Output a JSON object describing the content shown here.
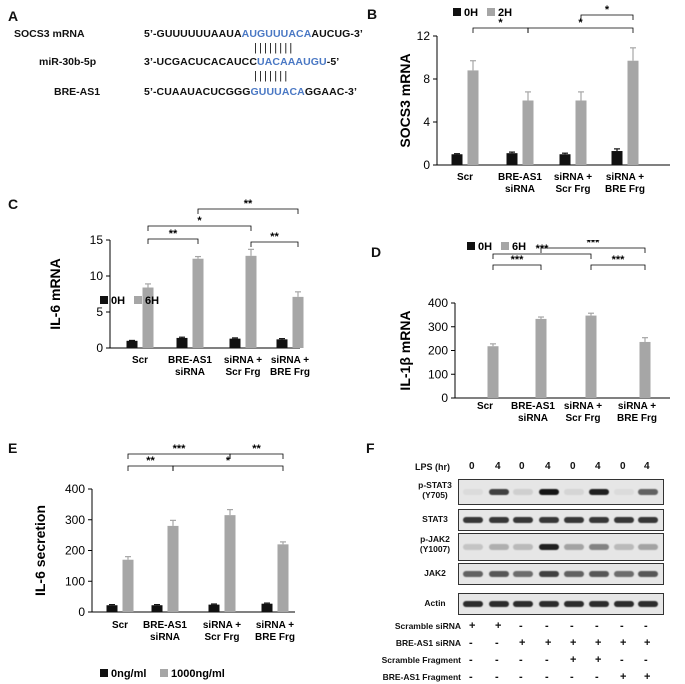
{
  "panels": {
    "A": {
      "label": "A",
      "rows": [
        {
          "name": "SOCS3 mRNA",
          "pre": "5’-GUUUUUUAAUA",
          "site": "AUGUUUACA",
          "post": "AUCUG-3’"
        },
        {
          "name": "miR-30b-5p",
          "pre": "3’-UCGACUCACAUCC",
          "site": "UACAAAUGU",
          "post": "-5’"
        },
        {
          "name": "BRE-AS1",
          "pre": "5’-CUAAUACUCGGG",
          "site": "GUUUACA",
          "post": "GGAAC-3’"
        }
      ],
      "pairing_bars": "||||||||"
    },
    "B": {
      "label": "B"
    },
    "C": {
      "label": "C"
    },
    "D": {
      "label": "D"
    },
    "E": {
      "label": "E"
    },
    "F": {
      "label": "F",
      "lps_label": "LPS (hr)",
      "lps_values": [
        "0",
        "4",
        "0",
        "4",
        "0",
        "4",
        "0",
        "4"
      ],
      "rows": [
        {
          "label": "p-STAT3\n(Y705)"
        },
        {
          "label": "STAT3"
        },
        {
          "label": "p-JAK2\n(Y1007)"
        },
        {
          "label": "JAK2"
        },
        {
          "label": "Actin"
        }
      ],
      "conditions": [
        {
          "name": "Scramble siRNA",
          "signs": [
            "+",
            "+",
            "-",
            "-",
            "-",
            "-",
            "-",
            "-"
          ]
        },
        {
          "name": "BRE-AS1 siRNA",
          "signs": [
            "-",
            "-",
            "+",
            "+",
            "+",
            "+",
            "+",
            "+"
          ]
        },
        {
          "name": "Scramble Fragment",
          "signs": [
            "-",
            "-",
            "-",
            "-",
            "+",
            "+",
            "-",
            "-"
          ]
        },
        {
          "name": "BRE-AS1 Fragment",
          "signs": [
            "-",
            "-",
            "-",
            "-",
            "-",
            "-",
            "+",
            "+"
          ]
        }
      ],
      "band_intensity": [
        [
          0.05,
          0.75,
          0.1,
          0.95,
          0.08,
          0.9,
          0.05,
          0.6
        ],
        [
          0.8,
          0.8,
          0.8,
          0.8,
          0.8,
          0.8,
          0.8,
          0.8
        ],
        [
          0.15,
          0.25,
          0.2,
          0.9,
          0.3,
          0.45,
          0.2,
          0.3
        ],
        [
          0.6,
          0.65,
          0.55,
          0.75,
          0.6,
          0.65,
          0.55,
          0.65
        ],
        [
          0.85,
          0.85,
          0.85,
          0.85,
          0.85,
          0.85,
          0.85,
          0.85
        ]
      ]
    }
  },
  "colors": {
    "dark": "#111111",
    "gray": "#a6a6a6",
    "seq_blue": "#4a78c4"
  },
  "chart_data": [
    {
      "id": "B",
      "type": "bar",
      "ylabel": "SOCS3 mRNA",
      "ylim": [
        0,
        12
      ],
      "yticks": [
        0,
        4,
        8,
        12
      ],
      "categories": [
        "Scr",
        "BRE-AS1\nsiRNA",
        "siRNA +\nScr Frg",
        "siRNA +\nBRE Frg"
      ],
      "series": [
        {
          "name": "0H",
          "values": [
            1.0,
            1.1,
            1.0,
            1.3
          ],
          "errors": [
            0.05,
            0.1,
            0.1,
            0.2
          ]
        },
        {
          "name": "2H",
          "values": [
            8.8,
            6.0,
            6.0,
            9.7
          ],
          "errors": [
            0.9,
            0.8,
            0.8,
            1.2
          ]
        }
      ],
      "legend": [
        "0H",
        "2H"
      ],
      "legend_position": "top",
      "significance": [
        {
          "from": [
            0,
            1
          ],
          "to": [
            1,
            1
          ],
          "label": "*"
        },
        {
          "from": [
            1,
            1
          ],
          "to": [
            3,
            1
          ],
          "label": "*"
        },
        {
          "from": [
            2,
            1
          ],
          "to": [
            3,
            1
          ],
          "label": "*"
        }
      ]
    },
    {
      "id": "C",
      "type": "bar",
      "ylabel": "IL-6 mRNA",
      "ylim": [
        0,
        15
      ],
      "yticks": [
        0,
        5,
        10,
        15
      ],
      "categories": [
        "Scr",
        "BRE-AS1\nsiRNA",
        "siRNA +\nScr Frg",
        "siRNA +\nBRE Frg"
      ],
      "series": [
        {
          "name": "0H",
          "values": [
            1.0,
            1.4,
            1.3,
            1.2
          ],
          "errors": [
            0.05,
            0.1,
            0.1,
            0.1
          ]
        },
        {
          "name": "6H",
          "values": [
            8.4,
            12.4,
            12.8,
            7.1
          ],
          "errors": [
            0.5,
            0.3,
            0.9,
            0.7
          ]
        }
      ],
      "legend": [
        "0H",
        "6H"
      ],
      "legend_position": "bottom-left",
      "significance": [
        {
          "from": [
            0,
            1
          ],
          "to": [
            1,
            1
          ],
          "label": "**"
        },
        {
          "from": [
            0,
            1
          ],
          "to": [
            2,
            1
          ],
          "label": "*"
        },
        {
          "from": [
            2,
            1
          ],
          "to": [
            3,
            1
          ],
          "label": "**"
        },
        {
          "from": [
            1,
            1
          ],
          "to": [
            3,
            1
          ],
          "label": "**"
        }
      ]
    },
    {
      "id": "D",
      "type": "bar",
      "ylabel": "IL-1β mRNA",
      "ylim": [
        0,
        400
      ],
      "yticks": [
        0,
        100,
        200,
        300,
        400
      ],
      "categories": [
        "Scr",
        "BRE-AS1\nsiRNA",
        "siRNA +\nScr Frg",
        "siRNA +\nBRE Frg"
      ],
      "series": [
        {
          "name": "0H",
          "values": [
            0,
            0,
            0,
            0
          ],
          "errors": [
            0,
            0,
            0,
            0
          ]
        },
        {
          "name": "6H",
          "values": [
            218,
            333,
            347,
            236
          ],
          "errors": [
            10,
            8,
            10,
            18
          ]
        }
      ],
      "legend": [
        "0H",
        "6H"
      ],
      "legend_position": "top",
      "significance": [
        {
          "from": [
            0,
            1
          ],
          "to": [
            1,
            1
          ],
          "label": "***"
        },
        {
          "from": [
            0,
            1
          ],
          "to": [
            2,
            1
          ],
          "label": "***"
        },
        {
          "from": [
            2,
            1
          ],
          "to": [
            3,
            1
          ],
          "label": "***"
        },
        {
          "from": [
            1,
            1
          ],
          "to": [
            3,
            1
          ],
          "label": "***"
        }
      ]
    },
    {
      "id": "E",
      "type": "bar",
      "ylabel": "IL-6 secretion",
      "ylim": [
        0,
        400
      ],
      "yticks": [
        0,
        100,
        200,
        300,
        400
      ],
      "categories": [
        "Scr",
        "BRE-AS1\nsiRNA",
        "siRNA +\nScr Frg",
        "siRNA +\nBRE Frg"
      ],
      "series": [
        {
          "name": "0ng/ml",
          "values": [
            22,
            22,
            24,
            27
          ],
          "errors": [
            2,
            2,
            2,
            2
          ]
        },
        {
          "name": "1000ng/ml",
          "values": [
            170,
            280,
            315,
            220
          ],
          "errors": [
            10,
            18,
            18,
            8
          ]
        }
      ],
      "legend": [
        "0ng/ml",
        "1000ng/ml"
      ],
      "legend_position": "bottom-left",
      "significance": [
        {
          "from": [
            0,
            1
          ],
          "to": [
            1,
            1
          ],
          "label": "**"
        },
        {
          "from": [
            0,
            1
          ],
          "to": [
            2,
            1
          ],
          "label": "***"
        },
        {
          "from": [
            1,
            1
          ],
          "to": [
            3,
            1
          ],
          "label": "*"
        },
        {
          "from": [
            2,
            1
          ],
          "to": [
            3,
            1
          ],
          "label": "**"
        }
      ]
    }
  ]
}
